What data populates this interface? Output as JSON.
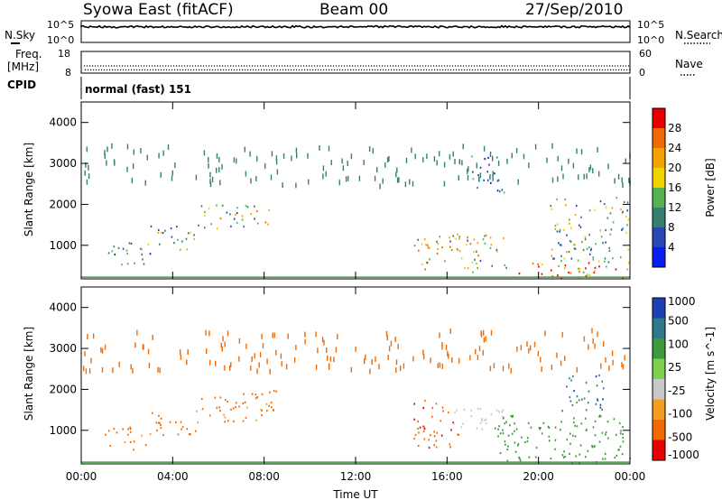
{
  "header": {
    "title": "Syowa East (fitACF)",
    "beam": "Beam 00",
    "date": "27/Sep/2010"
  },
  "left_labels": {
    "nsky": "N.Sky",
    "freq_line1": "Freq.",
    "freq_line2": "[MHz]",
    "cpid": "CPID"
  },
  "right_labels": {
    "nsearch": "N.Search",
    "nave": "Nave"
  },
  "cpid_text": "normal (fast) 151",
  "colors": {
    "frame": "#000000",
    "power_scale": [
      "#0a1df0",
      "#2846b4",
      "#347f6e",
      "#54b24f",
      "#f2d200",
      "#f5a300",
      "#f26a00",
      "#e60000"
    ],
    "velocity_scale": [
      "#e60000",
      "#f26a00",
      "#f59d20",
      "#c8c8c8",
      "#7ed14f",
      "#3c9a3c",
      "#2c7a8a",
      "#1f3fb4"
    ]
  },
  "chart_data": [
    {
      "type": "line",
      "name": "noise-panel",
      "ylabel": "N.Sky",
      "yticks_left": [
        "10^5",
        "10^0"
      ],
      "yticks_right": [
        "10^5",
        "10^0"
      ],
      "ylabel_right": "N.Search",
      "series_level_fraction": 0.72,
      "xlim": [
        "00:00",
        "24:00"
      ]
    },
    {
      "type": "scatter",
      "name": "frequency-panel",
      "ylabel": "Freq. [MHz]",
      "yticks_left": [
        18,
        8
      ],
      "yticks_right": [
        60,
        0
      ],
      "ylabel_right": "Nave",
      "series": [
        {
          "value": 11.6,
          "axis": "left"
        },
        {
          "value": 10.5,
          "axis": "right"
        }
      ],
      "xlim": [
        "00:00",
        "24:00"
      ]
    },
    {
      "type": "heatmap",
      "name": "power-panel",
      "ylabel": "Slant Range [km]",
      "ylim": [
        180,
        4500
      ],
      "yticks": [
        1000,
        2000,
        3000,
        4000
      ],
      "xlim": [
        "00:00",
        "24:00"
      ],
      "colorbar": {
        "label": "Power [dB]",
        "ticks": [
          4,
          8,
          12,
          16,
          20,
          24,
          28
        ],
        "range": [
          0,
          32
        ]
      },
      "echo_regions": [
        {
          "t": [
            1.0,
            3.0
          ],
          "r": [
            550,
            1150
          ],
          "level": 10
        },
        {
          "t": [
            3.0,
            5.0
          ],
          "r": [
            900,
            1500
          ],
          "level": 14
        },
        {
          "t": [
            5.0,
            8.2
          ],
          "r": [
            1400,
            2000
          ],
          "level": 16
        },
        {
          "t": [
            14.5,
            18.5
          ],
          "r": [
            350,
            1300
          ],
          "level": 17
        },
        {
          "t": [
            18.5,
            24.0
          ],
          "r": [
            220,
            600
          ],
          "level": 26
        },
        {
          "t": [
            20.5,
            24.0
          ],
          "r": [
            600,
            2200
          ],
          "level": 14
        },
        {
          "t": [
            17.0,
            18.5
          ],
          "r": [
            2300,
            3200
          ],
          "level": 8
        }
      ]
    },
    {
      "type": "heatmap",
      "name": "velocity-panel",
      "ylabel": "Slant Range [km]",
      "ylim": [
        180,
        4500
      ],
      "yticks": [
        1000,
        2000,
        3000,
        4000
      ],
      "xlim": [
        "00:00",
        "24:00"
      ],
      "xticks": [
        "00:00",
        "04:00",
        "08:00",
        "12:00",
        "16:00",
        "20:00",
        "00:00"
      ],
      "xlabel": "Time UT",
      "colorbar": {
        "label": "Velocity [m s^-1]",
        "ticks": [
          1000,
          500,
          100,
          25,
          -25,
          -100,
          -500,
          -1000
        ]
      },
      "echo_regions": [
        {
          "t": [
            1.0,
            3.0
          ],
          "r": [
            550,
            1100
          ],
          "level": -150
        },
        {
          "t": [
            3.0,
            5.0
          ],
          "r": [
            850,
            1450
          ],
          "level": -300
        },
        {
          "t": [
            5.0,
            8.5
          ],
          "r": [
            1200,
            2000
          ],
          "level": -150
        },
        {
          "t": [
            14.5,
            16.5
          ],
          "r": [
            600,
            1800
          ],
          "level": -400
        },
        {
          "t": [
            16.0,
            18.5
          ],
          "r": [
            1000,
            1600
          ],
          "level": 0
        },
        {
          "t": [
            18.0,
            24.0
          ],
          "r": [
            220,
            1400
          ],
          "level": 200
        },
        {
          "t": [
            21.0,
            23.0
          ],
          "r": [
            1500,
            2400
          ],
          "level": 800
        }
      ]
    }
  ]
}
